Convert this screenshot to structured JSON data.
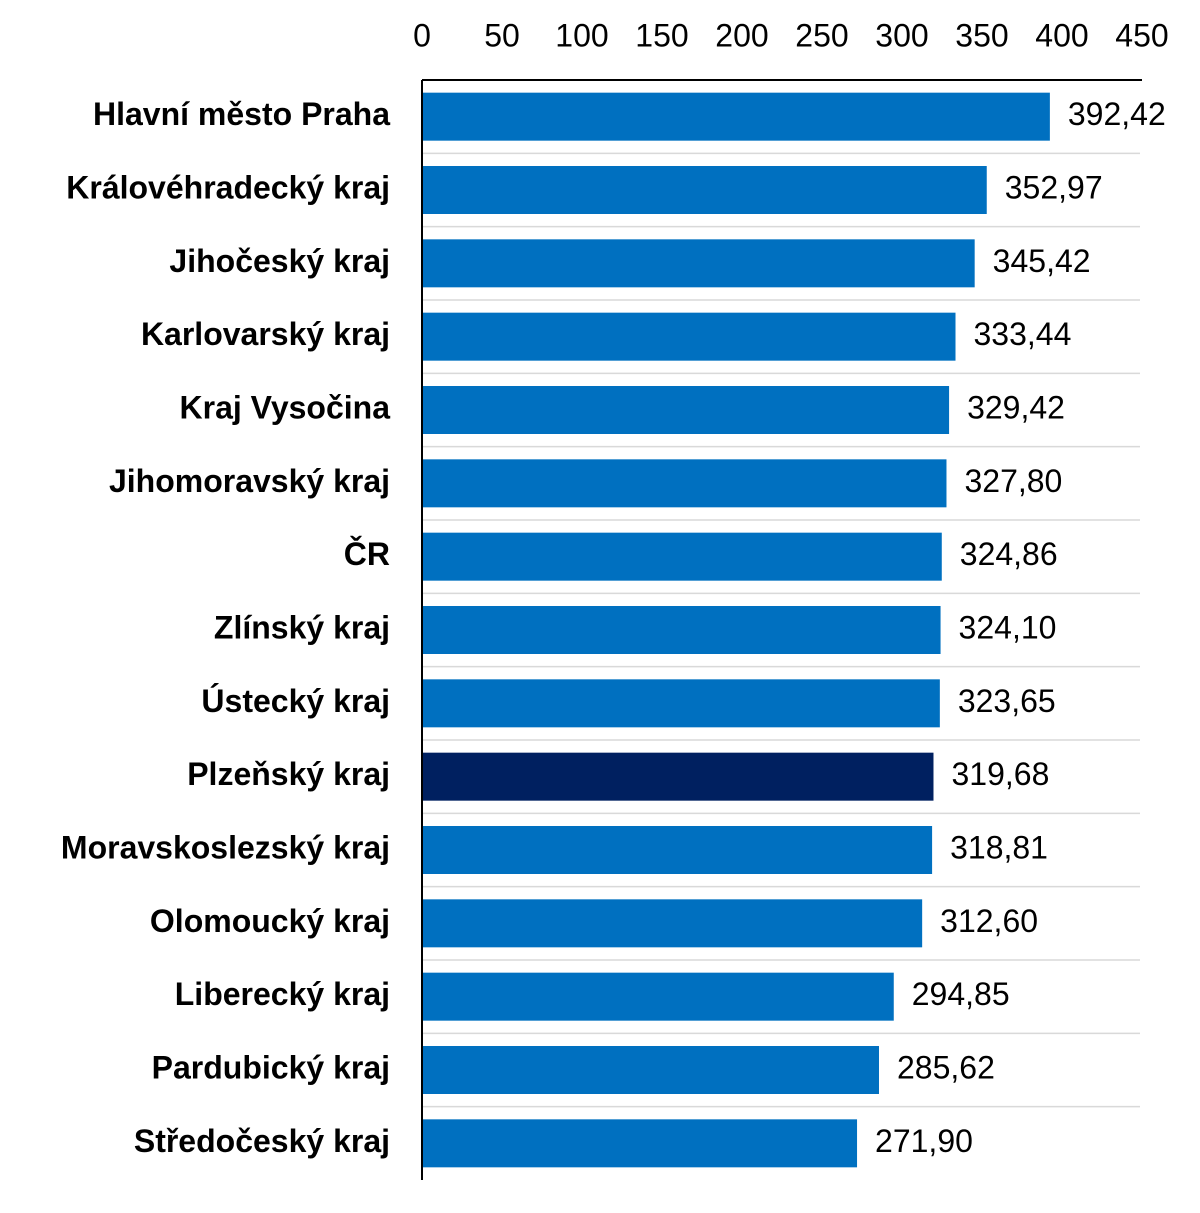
{
  "chart_data": {
    "type": "bar",
    "orientation": "horizontal",
    "categories": [
      "Hlavní město Praha",
      "Královéhradecký kraj",
      "Jihočeský kraj",
      "Karlovarský kraj",
      "Kraj Vysočina",
      "Jihomoravský kraj",
      "ČR",
      "Zlínský kraj",
      "Ústecký kraj",
      "Plzeňský kraj",
      "Moravskoslezský kraj",
      "Olomoucký kraj",
      "Liberecký kraj",
      "Pardubický kraj",
      "Středočeský kraj"
    ],
    "values": [
      392.42,
      352.97,
      345.42,
      333.44,
      329.42,
      327.8,
      324.86,
      324.1,
      323.65,
      319.68,
      318.81,
      312.6,
      294.85,
      285.62,
      271.9
    ],
    "value_labels": [
      "392,42",
      "352,97",
      "345,42",
      "333,44",
      "329,42",
      "327,80",
      "324,86",
      "324,10",
      "323,65",
      "319,68",
      "318,81",
      "312,60",
      "294,85",
      "285,62",
      "271,90"
    ],
    "colors": [
      "#0070c0",
      "#0070c0",
      "#0070c0",
      "#0070c0",
      "#0070c0",
      "#0070c0",
      "#0070c0",
      "#0070c0",
      "#0070c0",
      "#002060",
      "#0070c0",
      "#0070c0",
      "#0070c0",
      "#0070c0",
      "#0070c0"
    ],
    "xlim": [
      0,
      450
    ],
    "xticks": [
      0,
      50,
      100,
      150,
      200,
      250,
      300,
      350,
      400,
      450
    ]
  }
}
